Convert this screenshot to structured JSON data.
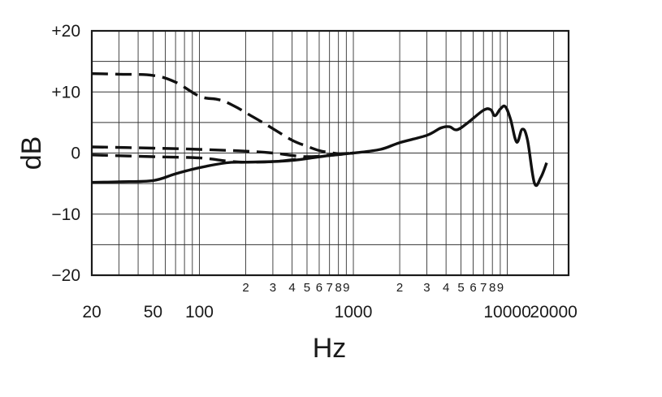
{
  "chart_data": {
    "type": "line",
    "xlabel": "Hz",
    "ylabel": "dB",
    "x_scale": "log",
    "xlim": [
      20,
      25000
    ],
    "ylim": [
      -20,
      20
    ],
    "grid": true,
    "y_ticks": [
      {
        "value": 20,
        "label": "+20"
      },
      {
        "value": 10,
        "label": "+10"
      },
      {
        "value": 0,
        "label": "0"
      },
      {
        "value": -10,
        "label": "−10"
      },
      {
        "value": -20,
        "label": "−20"
      }
    ],
    "x_major_ticks": [
      {
        "value": 20,
        "label": "20"
      },
      {
        "value": 50,
        "label": "50"
      },
      {
        "value": 100,
        "label": "100"
      },
      {
        "value": 1000,
        "label": "1000"
      },
      {
        "value": 10000,
        "label": "10000"
      },
      {
        "value": 20000,
        "label": "20000"
      }
    ],
    "x_minor_ticks": [
      {
        "value": 200,
        "label": "2"
      },
      {
        "value": 300,
        "label": "3"
      },
      {
        "value": 400,
        "label": "4"
      },
      {
        "value": 500,
        "label": "5"
      },
      {
        "value": 600,
        "label": "6"
      },
      {
        "value": 700,
        "label": "7"
      },
      {
        "value": 800,
        "label": "8"
      },
      {
        "value": 900,
        "label": "9"
      },
      {
        "value": 2000,
        "label": "2"
      },
      {
        "value": 3000,
        "label": "3"
      },
      {
        "value": 4000,
        "label": "4"
      },
      {
        "value": 5000,
        "label": "5"
      },
      {
        "value": 6000,
        "label": "6"
      },
      {
        "value": 7000,
        "label": "7"
      },
      {
        "value": 8000,
        "label": "8"
      },
      {
        "value": 9000,
        "label": "9"
      }
    ],
    "gridlines_x": [
      20,
      30,
      40,
      50,
      60,
      70,
      80,
      90,
      100,
      200,
      300,
      400,
      500,
      600,
      700,
      800,
      900,
      1000,
      2000,
      3000,
      4000,
      5000,
      6000,
      7000,
      8000,
      9000,
      10000,
      20000
    ],
    "gridlines_y": [
      20,
      15,
      10,
      5,
      0,
      -5,
      -10,
      -15,
      -20
    ],
    "series": [
      {
        "style": "solid",
        "x": [
          20,
          30,
          50,
          70,
          100,
          150,
          200,
          300,
          400,
          500,
          700,
          1000,
          1500,
          2000,
          3000,
          3700,
          4200,
          4700,
          5500,
          7000,
          7800,
          8300,
          9000,
          9700,
          10500,
          11500,
          12500,
          13500,
          15000,
          16500,
          18000
        ],
        "y": [
          -4.8,
          -4.7,
          -4.5,
          -3.4,
          -2.4,
          -1.6,
          -1.5,
          -1.4,
          -1.2,
          -0.9,
          -0.4,
          0.0,
          0.6,
          1.7,
          2.9,
          4.1,
          4.3,
          3.8,
          4.9,
          7.0,
          7.1,
          6.1,
          7.2,
          7.6,
          5.5,
          1.8,
          3.9,
          2.2,
          -4.9,
          -4.0,
          -1.6
        ]
      },
      {
        "style": "dashed",
        "x": [
          20,
          30,
          50,
          70,
          100,
          130,
          150,
          180,
          200,
          250,
          300,
          400,
          500,
          600,
          700,
          800,
          1000
        ],
        "y": [
          13.0,
          12.9,
          12.7,
          11.6,
          9.3,
          8.8,
          8.3,
          7.3,
          6.6,
          5.2,
          4.0,
          2.1,
          1.1,
          0.4,
          0.1,
          -0.1,
          0.0
        ]
      },
      {
        "style": "dashed",
        "x": [
          20,
          50,
          100,
          200,
          300,
          400,
          500,
          700,
          1000
        ],
        "y": [
          1.0,
          0.8,
          0.6,
          0.3,
          0.0,
          -0.4,
          -0.6,
          -0.4,
          0.0
        ]
      },
      {
        "style": "dashed",
        "x": [
          20,
          50,
          100,
          150,
          200,
          300,
          400,
          500,
          700,
          1000
        ],
        "y": [
          -0.3,
          -0.6,
          -0.8,
          -1.3,
          -1.5,
          -1.4,
          -1.1,
          -0.8,
          -0.3,
          0.0
        ]
      }
    ]
  }
}
